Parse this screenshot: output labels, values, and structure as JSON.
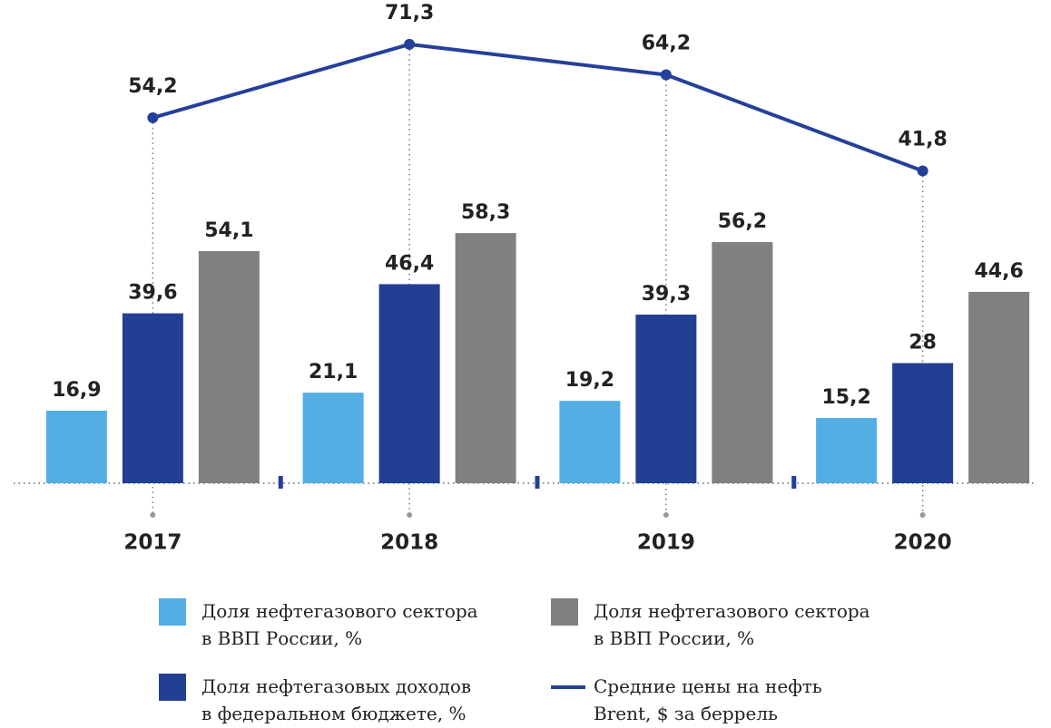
{
  "chart_data": {
    "type": "bar_line",
    "categories": [
      "2017",
      "2018",
      "2019",
      "2020"
    ],
    "ylim": [
      0,
      112
    ],
    "y2lim": [
      -31,
      81
    ],
    "series": [
      {
        "name": "Доля нефтегазового сектора\nв ВВП России, %",
        "color": "#53aee3",
        "values": [
          16.9,
          21.1,
          19.2,
          15.2
        ],
        "value_labels": [
          "16,9",
          "21,1",
          "19,2",
          "15,2"
        ]
      },
      {
        "name": "Доля нефтегазовых доходов\nв федеральном бюджете, %",
        "color": "#233f94",
        "values": [
          39.6,
          46.4,
          39.3,
          28
        ],
        "value_labels": [
          "39,6",
          "46,4",
          "39,3",
          "28"
        ]
      },
      {
        "name": "Доля нефтегазового сектора\nв ВВП России, %",
        "color": "#808080",
        "values": [
          54.1,
          58.3,
          56.2,
          44.6
        ],
        "value_labels": [
          "54,1",
          "58,3",
          "56,2",
          "44,6"
        ]
      },
      {
        "name": "Средние цены на нефть\nBrent, $ за беррель",
        "color": "#24409a",
        "type": "line",
        "axis": "y2",
        "values": [
          54.2,
          71.3,
          64.2,
          41.8
        ],
        "value_labels": [
          "54,2",
          "71,3",
          "64,2",
          "41,8"
        ]
      }
    ]
  }
}
